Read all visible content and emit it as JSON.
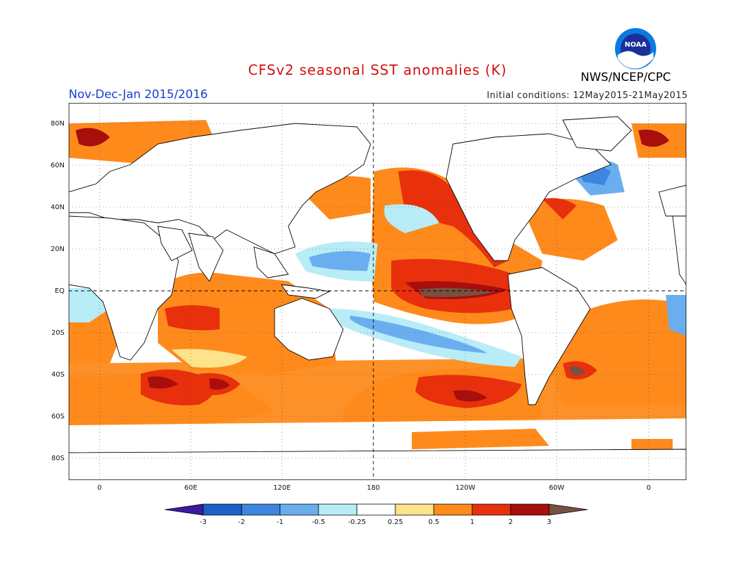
{
  "header": {
    "title": "CFSv2 seasonal SST anomalies (K)",
    "period": "Nov-Dec-Jan 2015/2016",
    "initial_conditions": "Initial conditions: 12May2015-21May2015",
    "agency": "NWS/NCEP/CPC",
    "logo_text": "NOAA"
  },
  "map": {
    "lat_labels": [
      "80N",
      "60N",
      "40N",
      "20N",
      "EQ",
      "20S",
      "40S",
      "60S",
      "80S"
    ],
    "lon_labels": [
      "0",
      "60E",
      "120E",
      "180",
      "120W",
      "60W",
      "0"
    ]
  },
  "colorbar": {
    "labels": [
      "-3",
      "-2",
      "-1",
      "-0.5",
      "-0.25",
      "0.25",
      "0.5",
      "1",
      "2",
      "3"
    ],
    "colors": [
      "#3a1aa0",
      "#1f5fc8",
      "#3d86e0",
      "#6aaef0",
      "#b8ecf6",
      "#ffffff",
      "#fde38a",
      "#fe8a1c",
      "#e8300c",
      "#a80e0c",
      "#785040"
    ]
  }
}
